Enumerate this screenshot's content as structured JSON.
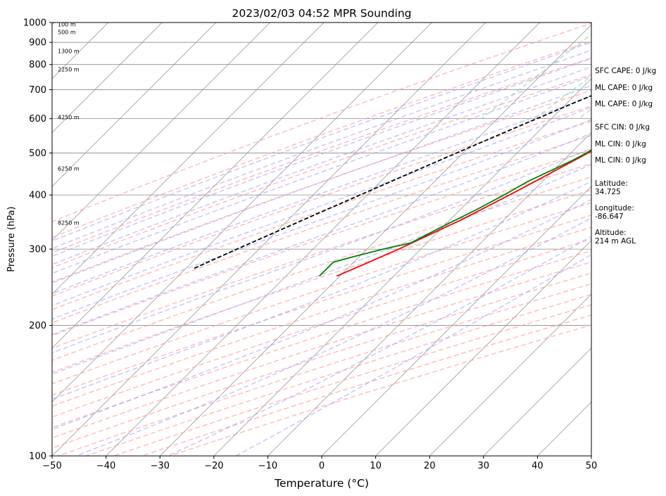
{
  "chart_data": {
    "type": "line",
    "title": "2023/02/03 04:52 MPR Sounding",
    "xlabel": "Temperature (°C)",
    "ylabel": "Pressure (hPa)",
    "xlim": [
      -50,
      50
    ],
    "ylim": [
      1000,
      100
    ],
    "y_scale": "log",
    "grid": true,
    "x_ticks": [
      -50,
      -40,
      -30,
      -20,
      -10,
      0,
      10,
      20,
      30,
      40,
      50
    ],
    "x_tick_labels": [
      "−50",
      "−40",
      "−30",
      "−20",
      "−10",
      "0",
      "10",
      "20",
      "30",
      "40",
      "50"
    ],
    "y_ticks": [
      1000,
      900,
      800,
      700,
      600,
      500,
      400,
      300,
      200,
      100
    ],
    "y_tick_labels": [
      "1000",
      "900",
      "800",
      "700",
      "600",
      "500",
      "400",
      "300",
      "200",
      "100"
    ],
    "series": [
      {
        "role": "temperature",
        "color": "#ff0000",
        "pressure": [
          1000,
          990,
          975,
          950,
          925,
          900,
          875,
          850,
          825,
          800,
          775,
          750,
          700,
          650,
          600,
          550,
          525,
          500,
          450,
          420,
          400,
          350,
          300,
          275,
          260
        ],
        "temp": [
          3.5,
          4.0,
          3.8,
          3.4,
          3.1,
          3.0,
          3.3,
          3.3,
          3.0,
          2.6,
          2.1,
          1.7,
          0.7,
          -0.9,
          -2.9,
          -4.7,
          -5.6,
          -6.8,
          -10.0,
          -12.1,
          -13.6,
          -18.0,
          -24.1,
          -28.0,
          -30.6
        ]
      },
      {
        "role": "dewpoint",
        "color": "#008000",
        "pressure": [
          1000,
          995,
          985,
          970,
          955,
          930,
          915,
          905,
          895,
          880,
          870,
          860,
          850,
          840,
          830,
          815,
          800,
          790,
          775,
          760,
          740,
          720,
          700,
          680,
          660,
          640,
          620,
          600,
          580,
          560,
          550,
          520,
          500,
          480,
          455,
          430,
          400,
          370,
          340,
          310,
          300,
          290,
          280,
          270,
          260
        ],
        "dewpoint": [
          2.0,
          1.0,
          0.3,
          -0.4,
          -1.2,
          -3.3,
          -6.8,
          -8.4,
          -9.2,
          -8.9,
          -8.6,
          -9.8,
          -9.6,
          -8.3,
          -6.3,
          -4.4,
          -2.6,
          -2.2,
          -1.0,
          -0.5,
          -0.4,
          -0.5,
          -0.8,
          -1.0,
          -1.3,
          -2.0,
          -2.0,
          -2.4,
          -2.7,
          -3.5,
          -5.7,
          -6.3,
          -7.1,
          -8.4,
          -10.5,
          -12.7,
          -14.6,
          -17.0,
          -20.0,
          -23.0,
          -27.0,
          -30.5,
          -33.8,
          -33.8,
          -33.8
        ]
      },
      {
        "role": "parcel",
        "color": "#000000",
        "dashed": true,
        "pressure": [
          1000,
          950,
          900,
          850,
          800,
          750,
          700,
          650,
          600,
          550,
          500,
          450,
          400,
          350,
          300,
          270
        ],
        "temp": [
          2.5,
          1.0,
          -2.0,
          -5.2,
          -8.4,
          -11.7,
          -15.2,
          -18.9,
          -22.7,
          -26.8,
          -31.2,
          -36.0,
          -41.3,
          -47.3,
          -54.1,
          -58.6
        ]
      }
    ],
    "height_labels": [
      "8250 m",
      "6250 m",
      "4250 m",
      "2250 m",
      "1300 m",
      "500 m",
      "100 m"
    ],
    "height_label_pressures": [
      345,
      460,
      605,
      780,
      860,
      950,
      990
    ],
    "colors": {
      "dry_adiabat": "#ff9a9a",
      "moist_adiabat": "#9a9aff",
      "mixing_ratio": "#8fcc8f",
      "isotherm": "#8a8a8a",
      "isobar": "#8a8a8a"
    }
  },
  "info_panel": {
    "sfc_cape": "SFC CAPE: 0 J/kg",
    "ml_cape_1": "ML CAPE: 0 J/kg",
    "ml_cape_2": "ML CAPE: 0 J/kg",
    "sfc_cin": "SFC CIN: 0 J/kg",
    "ml_cin_1": "ML CIN: 0 J/kg",
    "ml_cin_2": "ML CIN: 0 J/kg",
    "latitude_label": "Latitude:",
    "latitude_value": "34.725",
    "longitude_label": "Longitude:",
    "longitude_value": "-86.647",
    "altitude_label": "Altitude:",
    "altitude_value": "214 m AGL"
  }
}
